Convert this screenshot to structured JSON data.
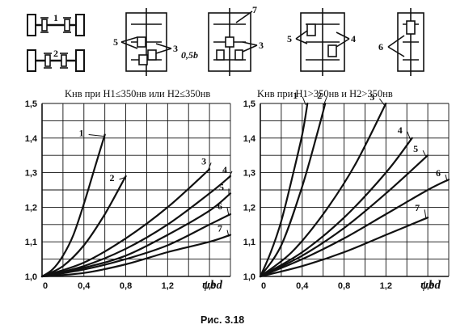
{
  "schemes": [
    {
      "id": "s1",
      "labels": [
        "1"
      ]
    },
    {
      "id": "s2",
      "labels": [
        "2"
      ]
    },
    {
      "id": "s3",
      "labels": [
        "5",
        "3"
      ]
    },
    {
      "id": "s4",
      "labels": [
        "7",
        "0,5b",
        "3"
      ]
    },
    {
      "id": "s5",
      "labels": [
        "5",
        "4"
      ]
    },
    {
      "id": "s6",
      "labels": [
        "6"
      ]
    }
  ],
  "caption": "Рис. 3.18",
  "chart_data": [
    {
      "type": "line",
      "title": "Kнв при H1≤350нв или H2≤350нв",
      "xlabel": "ψbd",
      "ylabel": "",
      "xlim": [
        0,
        1.8
      ],
      "ylim": [
        1.0,
        1.5
      ],
      "xticks": [
        "0",
        "0,4",
        "0,8",
        "1,2",
        "1,6"
      ],
      "yticks": [
        "1,0",
        "1,1",
        "1,2",
        "1,3",
        "1,4",
        "1,5"
      ],
      "grid": true,
      "series": [
        {
          "name": "1",
          "x": [
            0,
            0.1,
            0.2,
            0.3,
            0.4,
            0.5,
            0.6
          ],
          "y": [
            1.0,
            1.02,
            1.06,
            1.12,
            1.21,
            1.31,
            1.41
          ]
        },
        {
          "name": "2",
          "x": [
            0,
            0.2,
            0.4,
            0.6,
            0.8
          ],
          "y": [
            1.0,
            1.03,
            1.09,
            1.18,
            1.29
          ]
        },
        {
          "name": "3",
          "x": [
            0,
            0.4,
            0.8,
            1.2,
            1.6
          ],
          "y": [
            1.0,
            1.04,
            1.11,
            1.2,
            1.31
          ]
        },
        {
          "name": "4",
          "x": [
            0,
            0.4,
            0.8,
            1.2,
            1.6,
            1.8
          ],
          "y": [
            1.0,
            1.03,
            1.08,
            1.15,
            1.24,
            1.29
          ]
        },
        {
          "name": "5",
          "x": [
            0,
            0.4,
            0.8,
            1.2,
            1.6,
            1.8
          ],
          "y": [
            1.0,
            1.025,
            1.06,
            1.12,
            1.19,
            1.24
          ]
        },
        {
          "name": "6",
          "x": [
            0,
            0.4,
            0.8,
            1.2,
            1.6,
            1.8
          ],
          "y": [
            1.0,
            1.02,
            1.05,
            1.09,
            1.15,
            1.18
          ]
        },
        {
          "name": "7",
          "x": [
            0,
            0.4,
            0.8,
            1.2,
            1.6,
            1.8
          ],
          "y": [
            1.0,
            1.01,
            1.035,
            1.07,
            1.1,
            1.12
          ]
        }
      ]
    },
    {
      "type": "line",
      "title": "Kнв при H1>350нв и H2>350нв",
      "xlabel": "ψbd",
      "ylabel": "",
      "xlim": [
        0,
        1.8
      ],
      "ylim": [
        1.0,
        1.5
      ],
      "xticks": [
        "0",
        "0,4",
        "0,8",
        "1,2",
        "1,6"
      ],
      "yticks": [
        "1,0",
        "1,1",
        "1,2",
        "1,3",
        "1,4",
        "1,5"
      ],
      "grid": true,
      "series": [
        {
          "name": "1",
          "x": [
            0,
            0.1,
            0.2,
            0.3,
            0.4,
            0.45
          ],
          "y": [
            1.0,
            1.07,
            1.16,
            1.28,
            1.41,
            1.5
          ]
        },
        {
          "name": "2",
          "x": [
            0,
            0.2,
            0.4,
            0.55,
            0.62
          ],
          "y": [
            1.0,
            1.09,
            1.26,
            1.42,
            1.5
          ]
        },
        {
          "name": "3",
          "x": [
            0,
            0.3,
            0.6,
            0.9,
            1.2
          ],
          "y": [
            1.0,
            1.07,
            1.18,
            1.32,
            1.5
          ]
        },
        {
          "name": "4",
          "x": [
            0,
            0.4,
            0.8,
            1.2,
            1.45
          ],
          "y": [
            1.0,
            1.07,
            1.17,
            1.3,
            1.4
          ]
        },
        {
          "name": "5",
          "x": [
            0,
            0.4,
            0.8,
            1.2,
            1.6
          ],
          "y": [
            1.0,
            1.06,
            1.14,
            1.24,
            1.35
          ]
        },
        {
          "name": "6",
          "x": [
            0,
            0.4,
            0.8,
            1.2,
            1.6,
            1.8
          ],
          "y": [
            1.0,
            1.05,
            1.11,
            1.18,
            1.25,
            1.28
          ]
        },
        {
          "name": "7",
          "x": [
            0,
            0.4,
            0.8,
            1.2,
            1.6
          ],
          "y": [
            1.0,
            1.03,
            1.07,
            1.12,
            1.17
          ]
        }
      ]
    }
  ]
}
